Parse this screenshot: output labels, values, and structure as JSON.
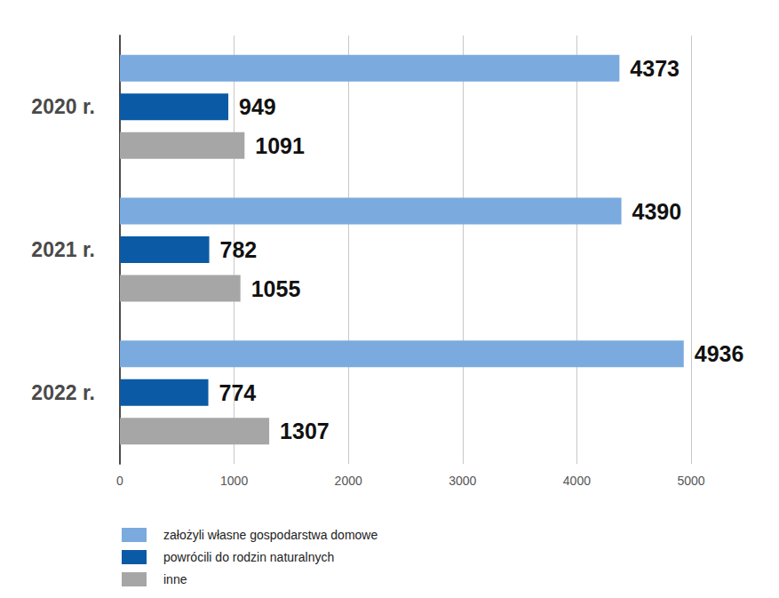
{
  "chart_data": {
    "type": "bar",
    "orientation": "horizontal",
    "categories": [
      "2020 r.",
      "2021 r.",
      "2022 r."
    ],
    "series": [
      {
        "name": "założyli własne gospodarstwa domowe",
        "color": "#7aaade",
        "values": [
          4373,
          4390,
          4936
        ]
      },
      {
        "name": "powrócili do rodzin naturalnych",
        "color": "#0b5aa5",
        "values": [
          949,
          782,
          774
        ]
      },
      {
        "name": "inne",
        "color": "#a6a6a6",
        "values": [
          1091,
          1055,
          1307
        ]
      }
    ],
    "xlim": [
      0,
      5000
    ],
    "xticks": [
      0,
      1000,
      2000,
      3000,
      4000,
      5000
    ],
    "grid": true,
    "data_labels": true,
    "legend": "bottom left"
  }
}
